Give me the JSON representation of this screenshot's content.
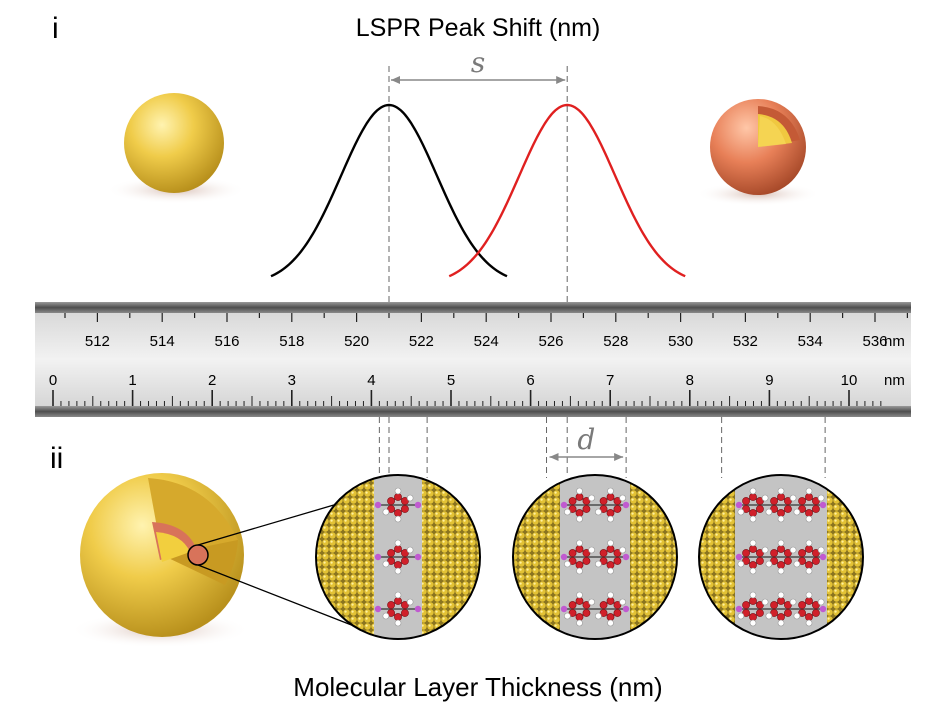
{
  "panels": {
    "top_label": "i",
    "bottom_label": "ii"
  },
  "titles": {
    "top": "LSPR Peak Shift (nm)",
    "bottom": "Molecular Layer Thickness (nm)"
  },
  "annotations": {
    "shift_symbol": "s",
    "thickness_symbol": "d"
  },
  "ruler": {
    "top_scale": {
      "unit": "nm",
      "min": 510,
      "max": 537,
      "major_labels": [
        512,
        514,
        516,
        518,
        520,
        522,
        524,
        526,
        528,
        530,
        532,
        534,
        536
      ]
    },
    "bottom_scale": {
      "unit": "nm",
      "min": 0,
      "max": 10.4,
      "major_labels": [
        0,
        1,
        2,
        3,
        4,
        5,
        6,
        7,
        8,
        9,
        10
      ]
    }
  },
  "spectra": {
    "reference_peak_nm": 521,
    "shifted_peak_nm": 526.5,
    "reference_color": "#000000",
    "shifted_color": "#e02020"
  },
  "thickness_markers_nm": [
    4.1,
    4.7,
    6.2,
    7.2,
    8.4,
    9.7
  ],
  "colors": {
    "gold": "#e8c23a",
    "shell": "#e07a52",
    "ruler_body": "#e6e6e6",
    "ruler_edge": "#6e6e6e",
    "dashed": "#666666",
    "arrow": "#888888"
  }
}
